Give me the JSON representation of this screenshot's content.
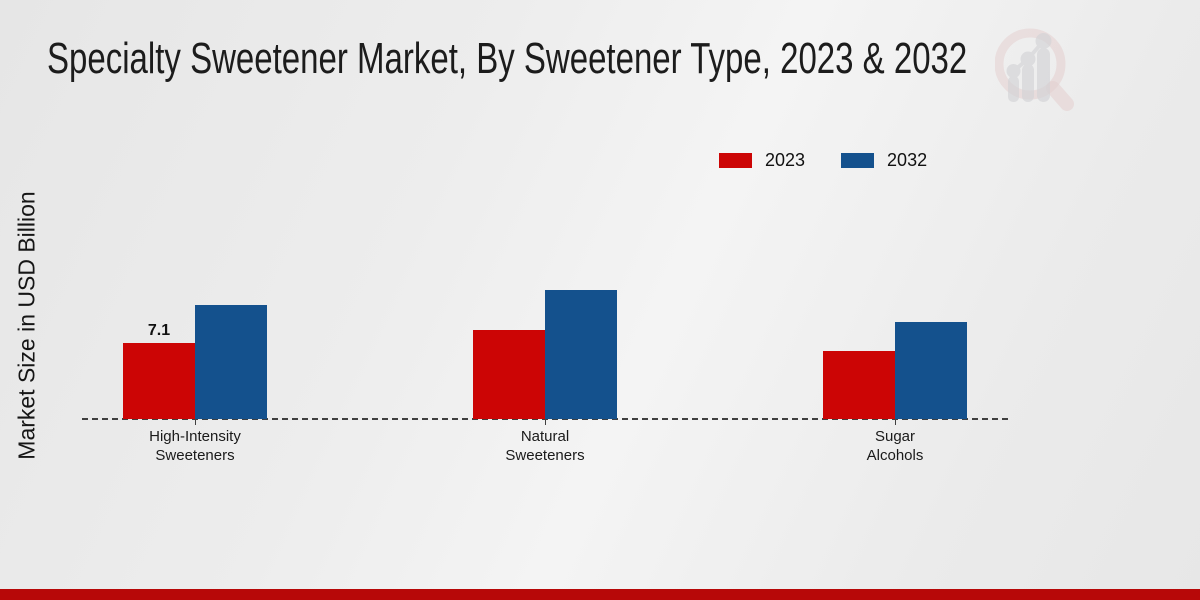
{
  "title": "Specialty Sweetener Market, By Sweetener Type, 2023 & 2032",
  "ylabel": "Market Size in USD Billion",
  "icons": {
    "watermark": "bar-chart-magnifier-logo"
  },
  "legend": {
    "items": [
      {
        "label": "2023",
        "color": "#cc0505"
      },
      {
        "label": "2032",
        "color": "#14518d"
      }
    ]
  },
  "chart_data": {
    "type": "bar",
    "title": "Specialty Sweetener Market, By Sweetener Type, 2023 & 2032",
    "ylabel": "Market Size in USD Billion",
    "xlabel": "",
    "categories": [
      "High-Intensity Sweeteners",
      "Natural Sweeteners",
      "Sugar Alcohols"
    ],
    "category_lines": [
      [
        "High-Intensity",
        "Sweeteners"
      ],
      [
        "Natural",
        "Sweeteners"
      ],
      [
        "Sugar",
        "Alcohols"
      ]
    ],
    "series": [
      {
        "name": "2023",
        "color": "#cc0505",
        "values": [
          7.1,
          8.3,
          6.4
        ]
      },
      {
        "name": "2032",
        "color": "#14518d",
        "values": [
          10.7,
          12.1,
          9.1
        ]
      }
    ],
    "bar_labels": [
      [
        "7.1",
        "",
        ""
      ],
      [
        "",
        "",
        ""
      ]
    ],
    "ylim": [
      0,
      13
    ],
    "grid": false,
    "legend_position": "top-right",
    "baseline_style": "dashed"
  },
  "colors": {
    "bar_2023": "#cc0505",
    "bar_2032": "#14518d",
    "bottom_strip": "#b70808",
    "axis_line": "#3f3f3f",
    "background": "#ededed",
    "text": "#161616"
  }
}
